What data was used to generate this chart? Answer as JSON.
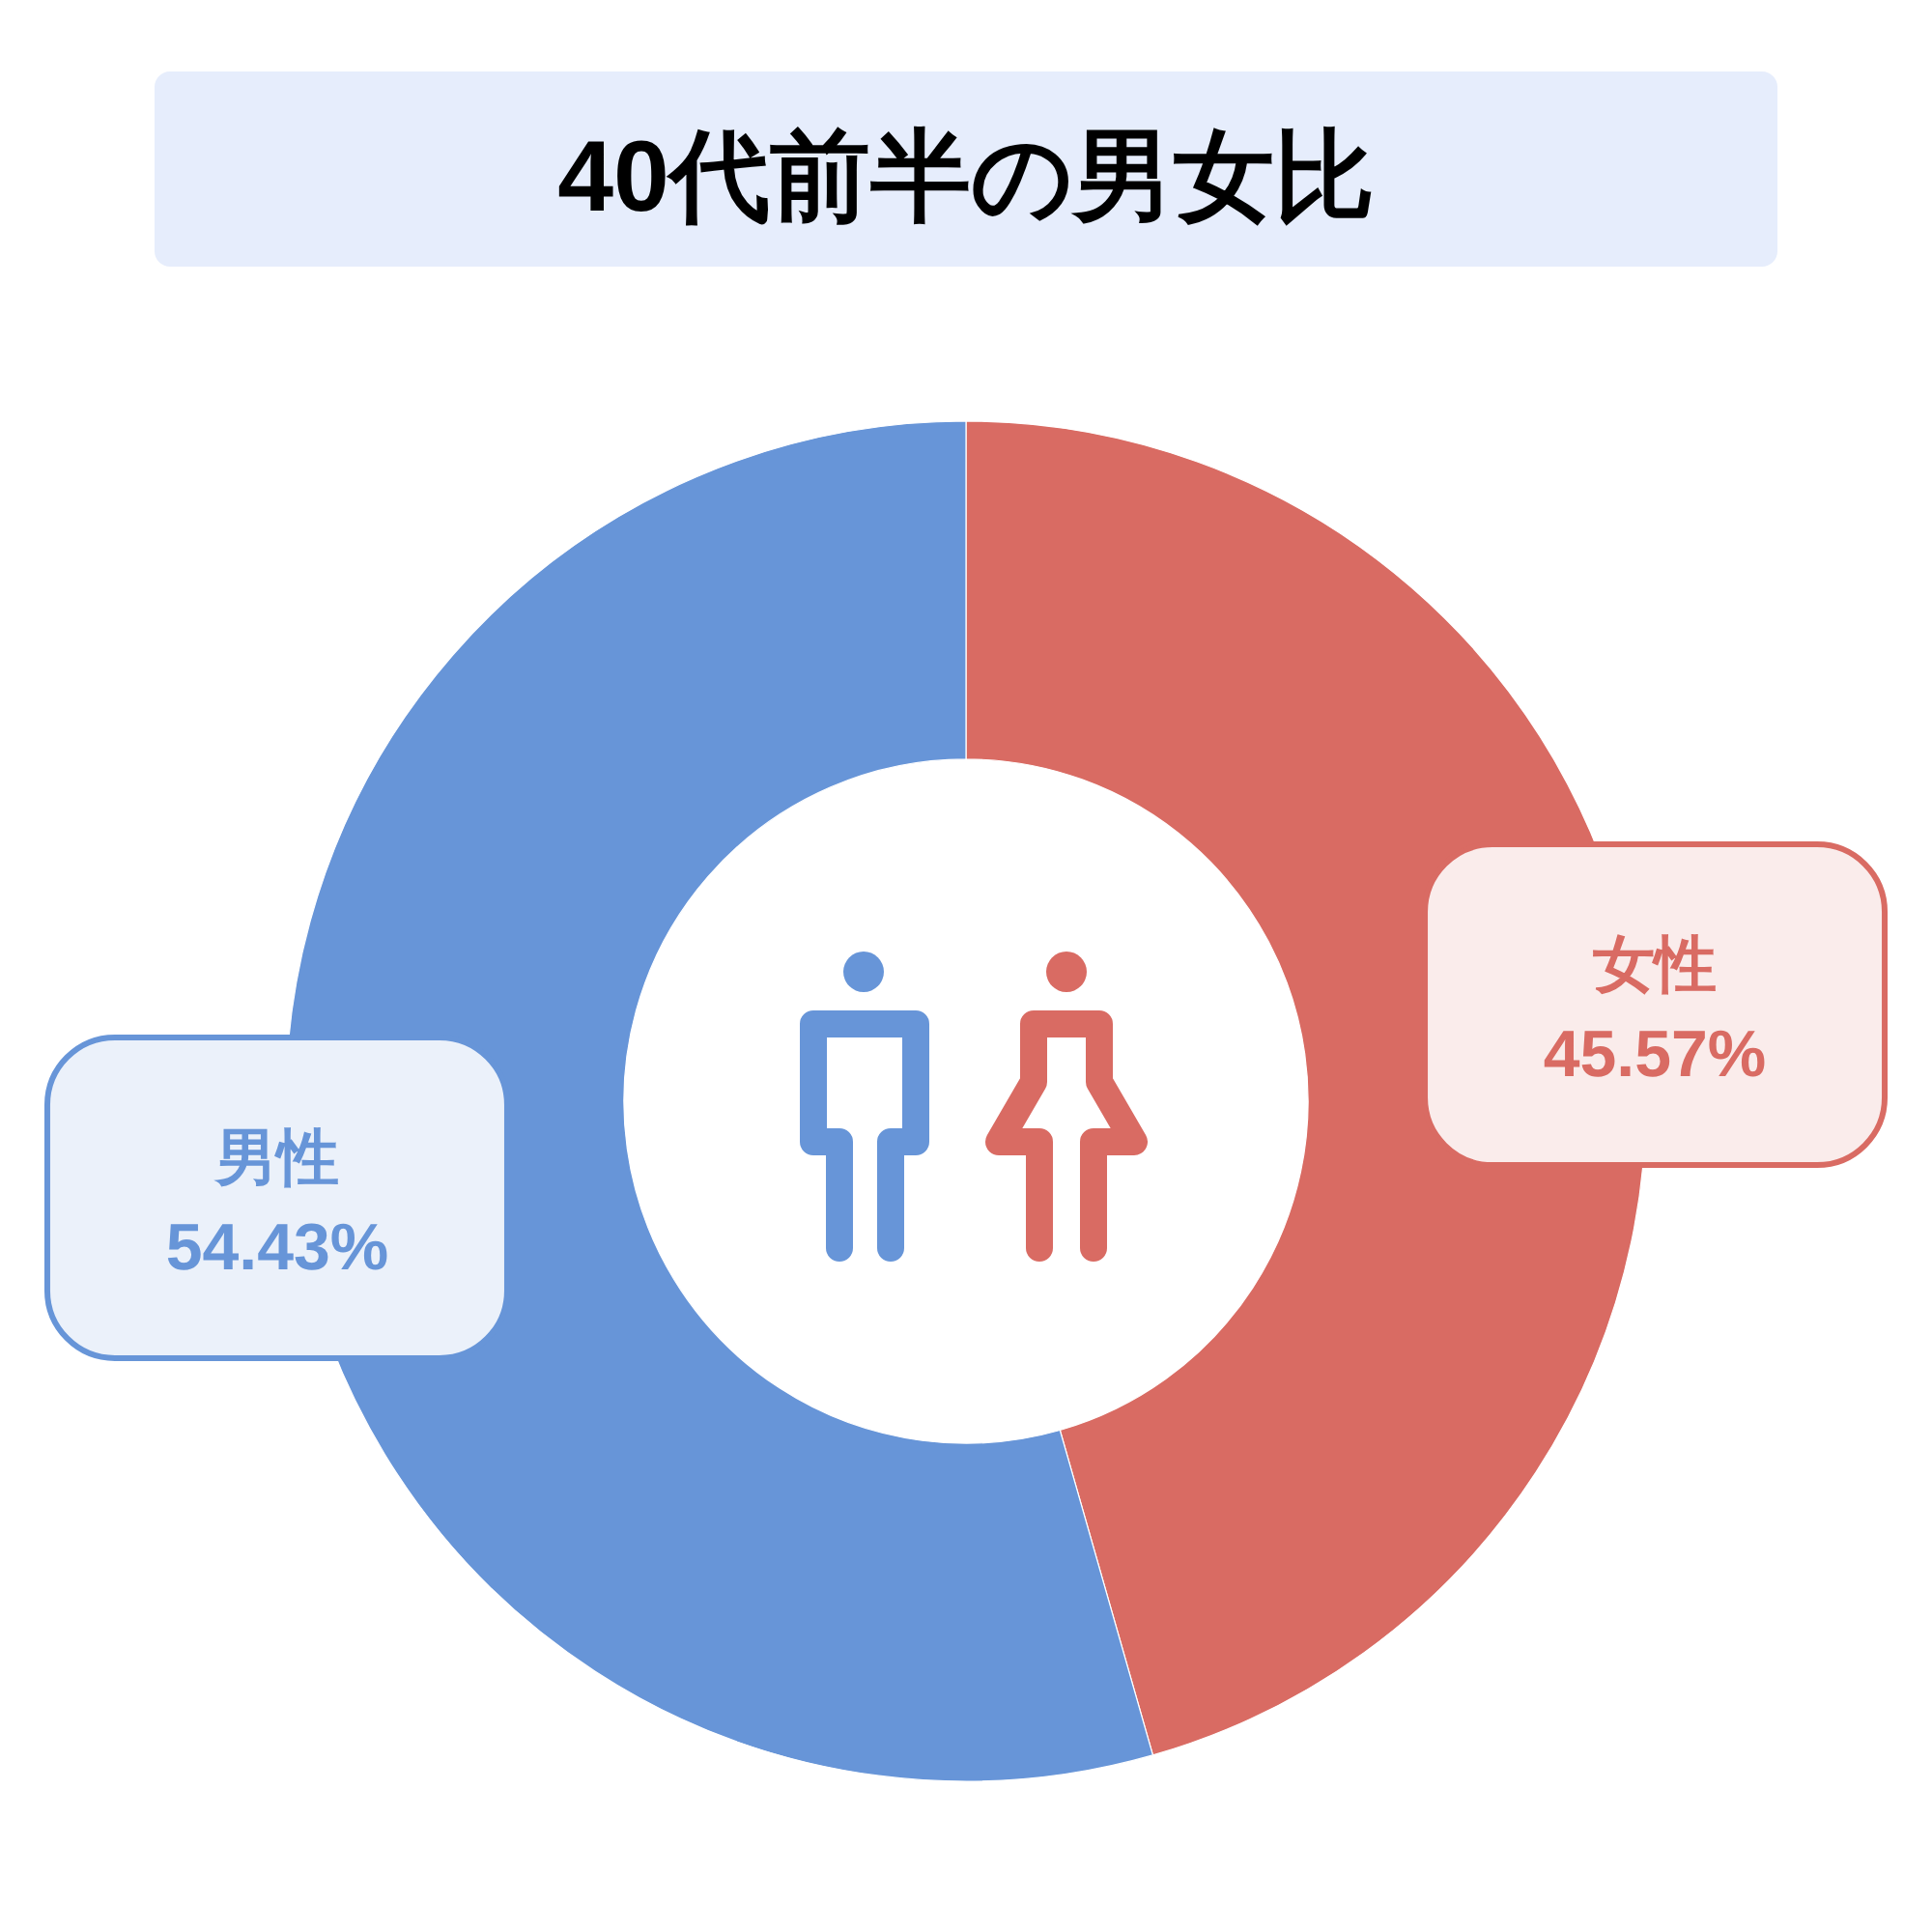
{
  "chart_data": {
    "type": "donut",
    "title": "40代前半の男女比",
    "categories": [
      "女性",
      "男性"
    ],
    "values": [
      45.57,
      54.43
    ],
    "colors": [
      "#d96b63",
      "#6795d8"
    ],
    "value_labels": [
      "45.57%",
      "54.43%"
    ]
  }
}
